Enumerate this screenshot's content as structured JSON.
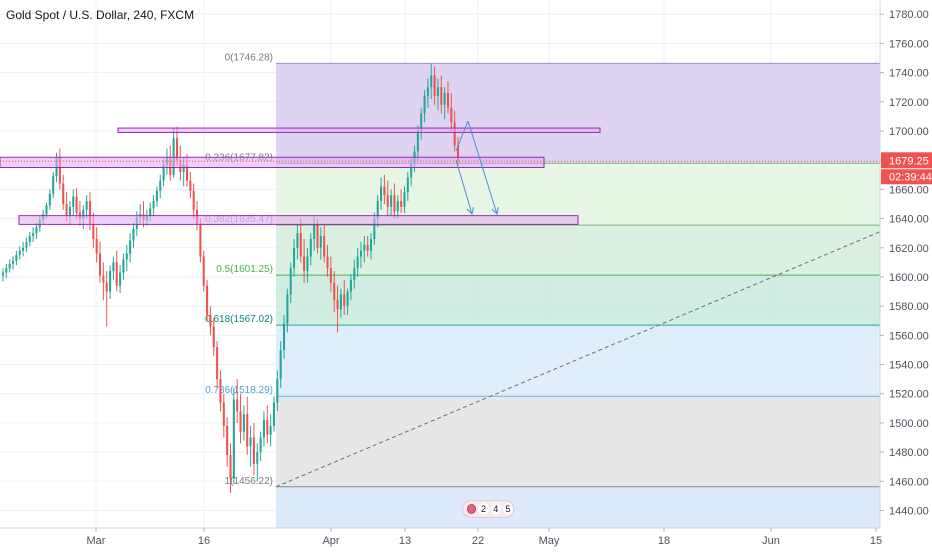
{
  "header": {
    "symbol": "Gold Spot / U.S. Dollar, 240, FXCM"
  },
  "colors": {
    "up": "#26a69a",
    "down": "#ef5350",
    "axis_text": "#4c525e",
    "grid": "#eef0f3",
    "price_tag": "#ef5350",
    "arrow": "#4a90d9",
    "zone_fill": "#e6a9f0",
    "zone_border": "#9c27b0"
  },
  "price_axis": {
    "ticks": [
      "1780.00",
      "1760.00",
      "1740.00",
      "1720.00",
      "1700.00",
      "1680.00",
      "1660.00",
      "1640.00",
      "1620.00",
      "1600.00",
      "1580.00",
      "1560.00",
      "1540.00",
      "1520.00",
      "1500.00",
      "1480.00",
      "1460.00",
      "1440.00"
    ],
    "current_price": "1679.25",
    "countdown": "02:39:44"
  },
  "time_axis": {
    "labels": [
      "Mar",
      "16",
      "Apr",
      "13",
      "22",
      "May",
      "18",
      "Jun",
      "15"
    ]
  },
  "events_badge": {
    "items": [
      "2",
      "4",
      "5"
    ]
  },
  "chart_data": {
    "type": "candlestick",
    "instrument": "Gold Spot / U.S. Dollar",
    "timeframe": "240",
    "source": "FXCM",
    "y_range": [
      1428,
      1787
    ],
    "current_price": 1679.25,
    "fibonacci_retracement": {
      "high": 1746.28,
      "low": 1456.22,
      "levels": [
        {
          "ratio": 0,
          "price": 1746.28,
          "label": "0(1746.28)",
          "line": "#9f8fce",
          "fill": "#d8cdef",
          "text": "#787b86"
        },
        {
          "ratio": 0.236,
          "price": 1677.82,
          "label": "0.236(1677.82)",
          "line": "#7cb87e",
          "fill": "#e2f3df",
          "text": "#787b86"
        },
        {
          "ratio": 0.382,
          "price": 1635.47,
          "label": "0.382(1635.47)",
          "line": "#7cb87e",
          "fill": "#d4eedd",
          "text": "#9aa0aa"
        },
        {
          "ratio": 0.5,
          "price": 1601.25,
          "label": "0.5(1601.25)",
          "line": "#4caf50",
          "fill": "#c9e9dc",
          "text": "#4caf50"
        },
        {
          "ratio": 0.618,
          "price": 1567.02,
          "label": "0.618(1567.02)",
          "line": "#26a69a",
          "fill": "#dbeafb",
          "text": "#0b8a7a"
        },
        {
          "ratio": 0.786,
          "price": 1518.29,
          "label": "0.786(1518.29)",
          "line": "#64b5f6",
          "fill": "#e3e3e3",
          "text": "#4da2e0"
        },
        {
          "ratio": 1,
          "price": 1456.22,
          "label": "1(1456.22)",
          "line": "#7f8a99",
          "fill": "#d6e6fa",
          "text": "#787b86"
        }
      ]
    },
    "zones": [
      {
        "top": 1702,
        "bottom": 1699,
        "from": "Mar 23",
        "to": "May 8"
      },
      {
        "top": 1682,
        "bottom": 1675,
        "from": "Feb 10",
        "to": "May 1"
      },
      {
        "top": 1642,
        "bottom": 1636,
        "from": "Feb 15",
        "to": "May 3"
      }
    ],
    "trend_line": {
      "from_price": 1456.22,
      "to_price": 1631,
      "style": "dashed"
    },
    "projection_arrows": [
      {
        "from": [
          1680,
          0
        ],
        "to": [
          1701,
          1
        ]
      },
      {
        "from": [
          1701,
          1
        ],
        "to": [
          1639,
          2
        ]
      },
      {
        "from": [
          1669,
          0
        ],
        "to": [
          1639,
          1
        ]
      }
    ],
    "candles": [
      [
        1601,
        1606,
        1597,
        1603
      ],
      [
        1603,
        1609,
        1599,
        1606
      ],
      [
        1606,
        1612,
        1603,
        1609
      ],
      [
        1609,
        1614,
        1605,
        1611
      ],
      [
        1611,
        1618,
        1608,
        1615
      ],
      [
        1615,
        1621,
        1612,
        1618
      ],
      [
        1618,
        1624,
        1614,
        1620
      ],
      [
        1620,
        1627,
        1617,
        1624
      ],
      [
        1624,
        1631,
        1621,
        1628
      ],
      [
        1628,
        1634,
        1624,
        1630
      ],
      [
        1630,
        1637,
        1626,
        1634
      ],
      [
        1634,
        1642,
        1631,
        1639
      ],
      [
        1639,
        1646,
        1636,
        1643
      ],
      [
        1643,
        1651,
        1640,
        1649
      ],
      [
        1649,
        1660,
        1646,
        1657
      ],
      [
        1657,
        1672,
        1654,
        1669
      ],
      [
        1669,
        1685,
        1665,
        1682
      ],
      [
        1682,
        1688,
        1660,
        1664
      ],
      [
        1664,
        1670,
        1646,
        1650
      ],
      [
        1650,
        1658,
        1638,
        1642
      ],
      [
        1642,
        1652,
        1636,
        1648
      ],
      [
        1648,
        1660,
        1642,
        1655
      ],
      [
        1655,
        1661,
        1640,
        1644
      ],
      [
        1644,
        1652,
        1635,
        1640
      ],
      [
        1640,
        1649,
        1633,
        1646
      ],
      [
        1646,
        1656,
        1640,
        1652
      ],
      [
        1652,
        1658,
        1632,
        1636
      ],
      [
        1636,
        1644,
        1620,
        1626
      ],
      [
        1626,
        1634,
        1610,
        1616
      ],
      [
        1616,
        1624,
        1596,
        1601
      ],
      [
        1601,
        1610,
        1584,
        1596
      ],
      [
        1596,
        1604,
        1566,
        1590
      ],
      [
        1590,
        1608,
        1585,
        1604
      ],
      [
        1604,
        1614,
        1598,
        1610
      ],
      [
        1610,
        1618,
        1590,
        1594
      ],
      [
        1594,
        1608,
        1589,
        1603
      ],
      [
        1603,
        1616,
        1598,
        1612
      ],
      [
        1612,
        1622,
        1604,
        1616
      ],
      [
        1616,
        1630,
        1610,
        1625
      ],
      [
        1625,
        1637,
        1620,
        1633
      ],
      [
        1633,
        1645,
        1628,
        1641
      ],
      [
        1641,
        1650,
        1636,
        1643
      ],
      [
        1643,
        1652,
        1634,
        1639
      ],
      [
        1639,
        1646,
        1635,
        1642
      ],
      [
        1642,
        1651,
        1638,
        1647
      ],
      [
        1647,
        1656,
        1642,
        1652
      ],
      [
        1652,
        1662,
        1648,
        1659
      ],
      [
        1659,
        1670,
        1654,
        1666
      ],
      [
        1666,
        1681,
        1662,
        1677
      ],
      [
        1677,
        1688,
        1670,
        1682
      ],
      [
        1682,
        1690,
        1666,
        1670
      ],
      [
        1670,
        1702,
        1668,
        1695
      ],
      [
        1695,
        1703,
        1676,
        1680
      ],
      [
        1680,
        1690,
        1666,
        1672
      ],
      [
        1672,
        1682,
        1662,
        1677
      ],
      [
        1677,
        1684,
        1662,
        1666
      ],
      [
        1666,
        1672,
        1654,
        1659
      ],
      [
        1659,
        1664,
        1640,
        1646
      ],
      [
        1646,
        1652,
        1632,
        1636
      ],
      [
        1636,
        1640,
        1610,
        1614
      ],
      [
        1614,
        1618,
        1590,
        1594
      ],
      [
        1594,
        1598,
        1570,
        1574
      ],
      [
        1574,
        1580,
        1560,
        1566
      ],
      [
        1566,
        1572,
        1546,
        1552
      ],
      [
        1552,
        1556,
        1524,
        1530
      ],
      [
        1530,
        1536,
        1508,
        1514
      ],
      [
        1514,
        1520,
        1490,
        1498
      ],
      [
        1498,
        1504,
        1470,
        1478
      ],
      [
        1478,
        1486,
        1452,
        1462
      ],
      [
        1462,
        1524,
        1458,
        1516
      ],
      [
        1516,
        1530,
        1500,
        1508
      ],
      [
        1508,
        1520,
        1486,
        1494
      ],
      [
        1494,
        1512,
        1488,
        1506
      ],
      [
        1506,
        1518,
        1478,
        1484
      ],
      [
        1484,
        1498,
        1470,
        1490
      ],
      [
        1490,
        1500,
        1464,
        1472
      ],
      [
        1472,
        1486,
        1460,
        1480
      ],
      [
        1480,
        1494,
        1474,
        1490
      ],
      [
        1490,
        1508,
        1484,
        1502
      ],
      [
        1502,
        1512,
        1486,
        1492
      ],
      [
        1492,
        1506,
        1484,
        1498
      ],
      [
        1498,
        1518,
        1494,
        1514
      ],
      [
        1514,
        1536,
        1508,
        1530
      ],
      [
        1530,
        1556,
        1524,
        1550
      ],
      [
        1550,
        1574,
        1544,
        1568
      ],
      [
        1568,
        1592,
        1562,
        1588
      ],
      [
        1588,
        1610,
        1582,
        1606
      ],
      [
        1606,
        1626,
        1600,
        1620
      ],
      [
        1620,
        1636,
        1612,
        1630
      ],
      [
        1630,
        1640,
        1610,
        1614
      ],
      [
        1614,
        1626,
        1596,
        1604
      ],
      [
        1604,
        1620,
        1596,
        1614
      ],
      [
        1614,
        1630,
        1608,
        1626
      ],
      [
        1626,
        1642,
        1618,
        1636
      ],
      [
        1636,
        1640,
        1616,
        1620
      ],
      [
        1620,
        1634,
        1612,
        1628
      ],
      [
        1628,
        1636,
        1610,
        1614
      ],
      [
        1614,
        1622,
        1600,
        1606
      ],
      [
        1606,
        1614,
        1590,
        1596
      ],
      [
        1596,
        1604,
        1576,
        1584
      ],
      [
        1584,
        1594,
        1562,
        1578
      ],
      [
        1578,
        1592,
        1572,
        1588
      ],
      [
        1588,
        1598,
        1574,
        1580
      ],
      [
        1580,
        1592,
        1574,
        1590
      ],
      [
        1590,
        1602,
        1584,
        1598
      ],
      [
        1598,
        1612,
        1592,
        1606
      ],
      [
        1606,
        1620,
        1600,
        1614
      ],
      [
        1614,
        1624,
        1606,
        1618
      ],
      [
        1618,
        1628,
        1610,
        1622
      ],
      [
        1622,
        1628,
        1614,
        1618
      ],
      [
        1618,
        1630,
        1612,
        1626
      ],
      [
        1626,
        1644,
        1622,
        1640
      ],
      [
        1640,
        1656,
        1634,
        1652
      ],
      [
        1652,
        1668,
        1646,
        1662
      ],
      [
        1662,
        1670,
        1650,
        1656
      ],
      [
        1656,
        1666,
        1642,
        1648
      ],
      [
        1648,
        1660,
        1642,
        1656
      ],
      [
        1656,
        1664,
        1640,
        1645
      ],
      [
        1645,
        1656,
        1640,
        1652
      ],
      [
        1652,
        1660,
        1644,
        1648
      ],
      [
        1648,
        1662,
        1644,
        1658
      ],
      [
        1658,
        1672,
        1652,
        1668
      ],
      [
        1668,
        1682,
        1662,
        1678
      ],
      [
        1678,
        1690,
        1672,
        1686
      ],
      [
        1686,
        1704,
        1680,
        1700
      ],
      [
        1700,
        1716,
        1694,
        1712
      ],
      [
        1712,
        1728,
        1706,
        1724
      ],
      [
        1724,
        1736,
        1716,
        1730
      ],
      [
        1730,
        1746,
        1722,
        1738
      ],
      [
        1738,
        1744,
        1718,
        1724
      ],
      [
        1724,
        1736,
        1714,
        1730
      ],
      [
        1730,
        1738,
        1712,
        1718
      ],
      [
        1718,
        1730,
        1708,
        1726
      ],
      [
        1726,
        1734,
        1712,
        1716
      ],
      [
        1716,
        1726,
        1700,
        1706
      ],
      [
        1706,
        1714,
        1686,
        1690
      ],
      [
        1690,
        1696,
        1676,
        1679
      ]
    ]
  }
}
